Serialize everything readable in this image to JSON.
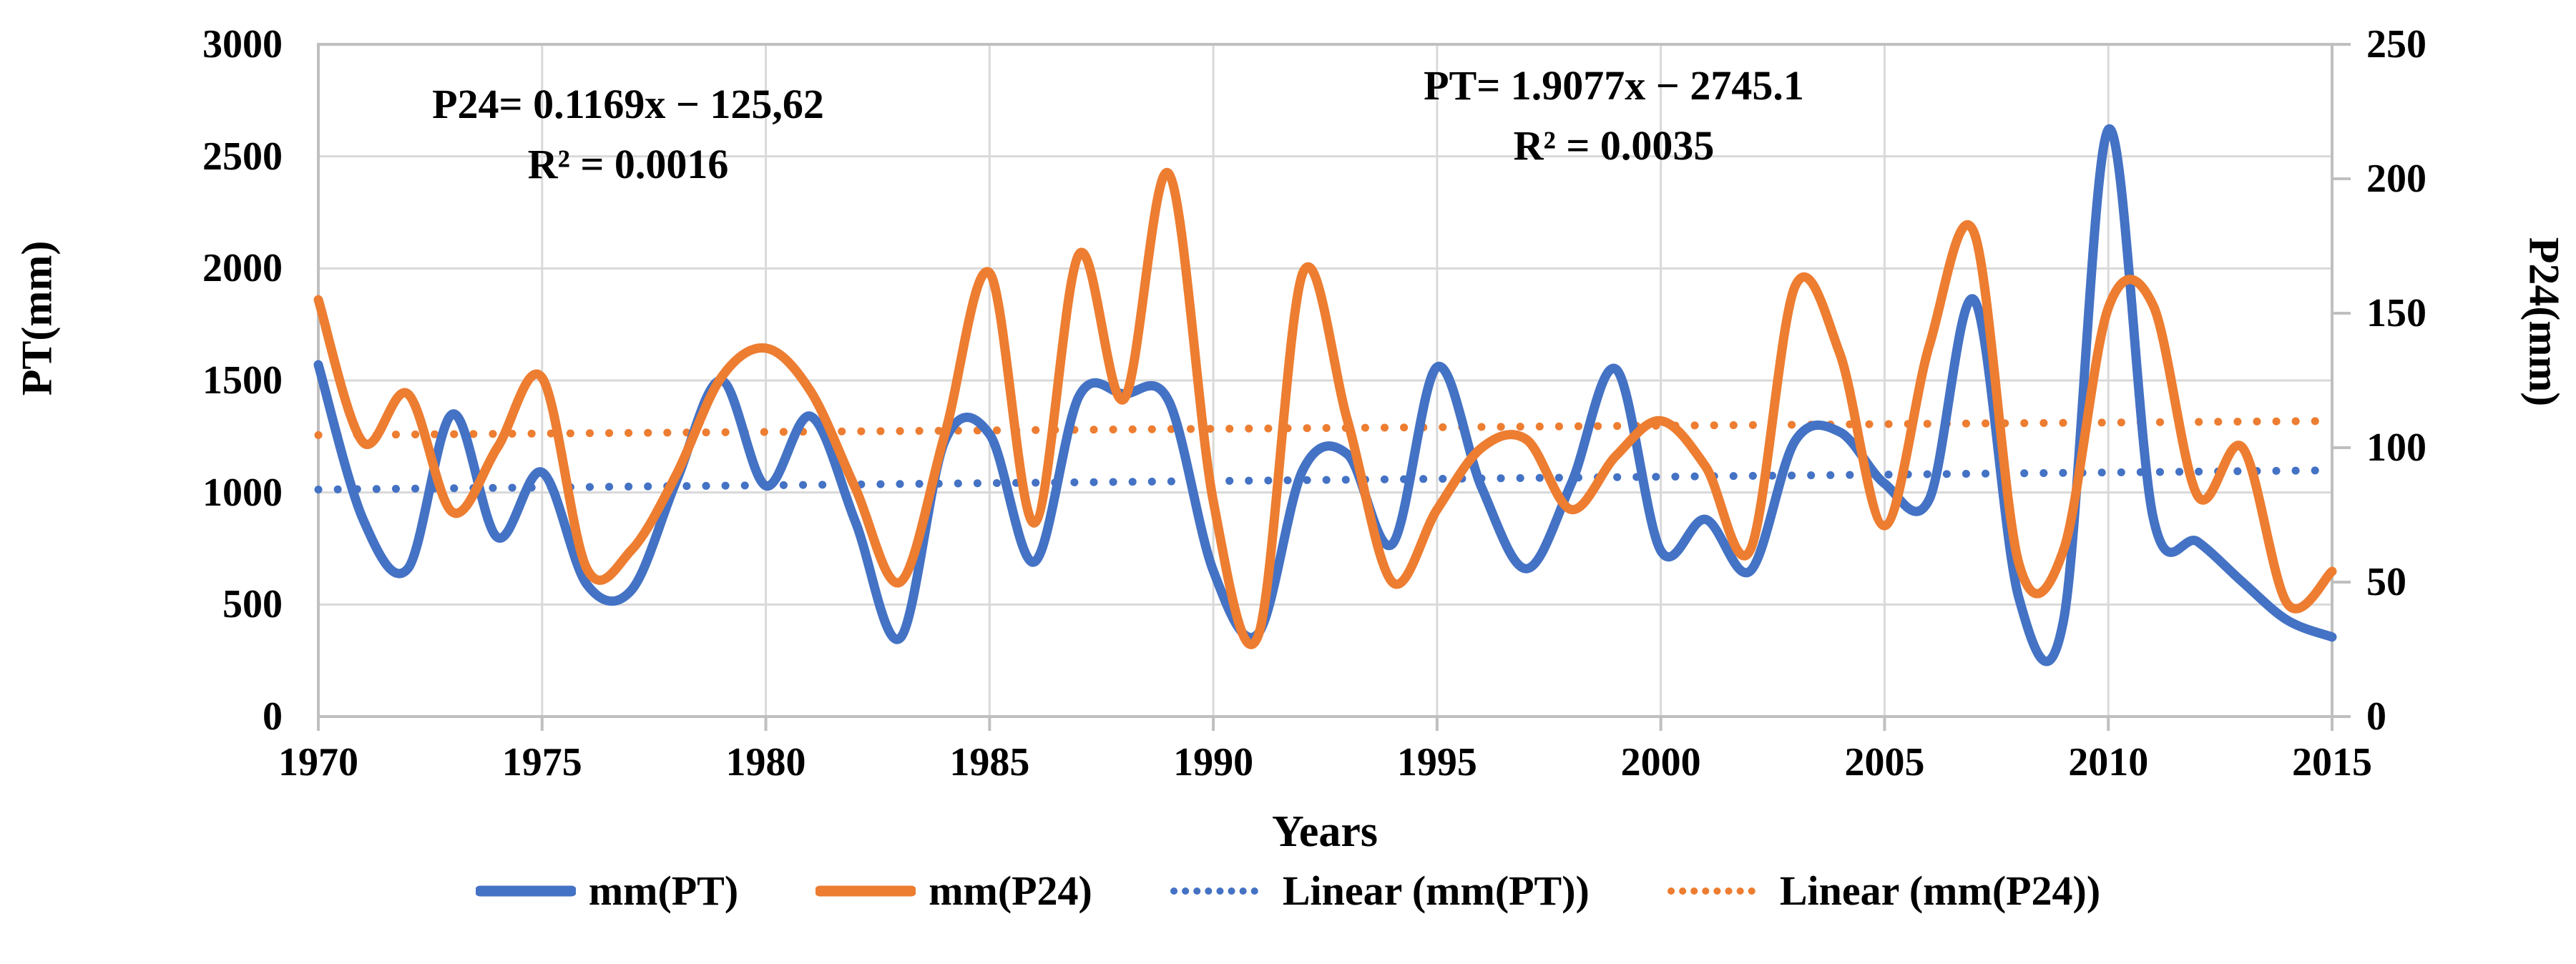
{
  "chart_data": {
    "type": "line",
    "title": "",
    "x": [
      1970,
      1971,
      1972,
      1973,
      1974,
      1975,
      1976,
      1977,
      1978,
      1979,
      1980,
      1981,
      1982,
      1983,
      1984,
      1985,
      1986,
      1987,
      1988,
      1989,
      1990,
      1991,
      1992,
      1993,
      1994,
      1995,
      1996,
      1997,
      1998,
      1999,
      2000,
      2001,
      2002,
      2003,
      2004,
      2005,
      2006,
      2007,
      2008,
      2009,
      2010,
      2011,
      2012,
      2013,
      2014,
      2015
    ],
    "series": [
      {
        "name": "mm(PT)",
        "axis": "left",
        "color": "#4472C4",
        "style": "solid",
        "smooth": true,
        "values": [
          1570,
          880,
          660,
          1350,
          800,
          1090,
          590,
          565,
          1050,
          1500,
          1030,
          1340,
          870,
          350,
          1230,
          1260,
          690,
          1430,
          1440,
          1410,
          650,
          370,
          1100,
          1170,
          770,
          1560,
          1020,
          660,
          1040,
          1550,
          740,
          880,
          650,
          1230,
          1270,
          1040,
          970,
          1860,
          530,
          430,
          2620,
          890,
          780,
          600,
          430,
          355
        ]
      },
      {
        "name": "mm(P24)",
        "axis": "right",
        "color": "#ED7D31",
        "style": "solid",
        "smooth": true,
        "values": [
          155,
          102,
          120,
          76,
          100,
          126,
          55,
          62,
          90,
          126,
          137,
          121,
          85,
          50,
          105,
          165,
          72,
          172,
          118,
          202,
          80,
          30,
          165,
          110,
          50,
          77,
          100,
          103,
          77,
          97,
          110,
          93,
          62,
          160,
          135,
          71,
          138,
          180,
          57,
          62,
          152,
          153,
          82,
          100,
          42,
          54
        ]
      },
      {
        "name": "Linear (mm(PT))",
        "axis": "left",
        "color": "#4472C4",
        "style": "dotted",
        "trend": {
          "slope": 1.9077,
          "intercept": -2745.1
        }
      },
      {
        "name": "Linear (mm(P24))",
        "axis": "right",
        "color": "#ED7D31",
        "style": "dotted",
        "trend": {
          "slope": 0.1169,
          "intercept": -125.62
        }
      }
    ],
    "axes": {
      "left": {
        "label": "PT(mm)",
        "min": 0,
        "max": 3000,
        "step": 500,
        "ticks": [
          "3000",
          "2500",
          "2000",
          "1500",
          "1000",
          "500",
          "0"
        ]
      },
      "right": {
        "label": "P24(mm)",
        "min": 0,
        "max": 250,
        "step": 50,
        "ticks": [
          "250",
          "200",
          "150",
          "100",
          "50",
          "0"
        ]
      },
      "x": {
        "label": "Years",
        "ticks": [
          "1970",
          "1975",
          "1980",
          "1985",
          "1990",
          "1995",
          "2000",
          "2005",
          "2010",
          "2015"
        ]
      }
    },
    "annotations": [
      {
        "lines": [
          "P24= 0.1169x − 125,62",
          "R² = 0.0016"
        ]
      },
      {
        "lines": [
          "PT= 1.9077x − 2745.1",
          "R² = 0.0035"
        ]
      }
    ],
    "grid": true,
    "legend_position": "bottom"
  },
  "style_colors": {
    "gridline": "#D9D9D9",
    "axis_line": "#BFBFBF",
    "background": "#FFFFFF"
  }
}
